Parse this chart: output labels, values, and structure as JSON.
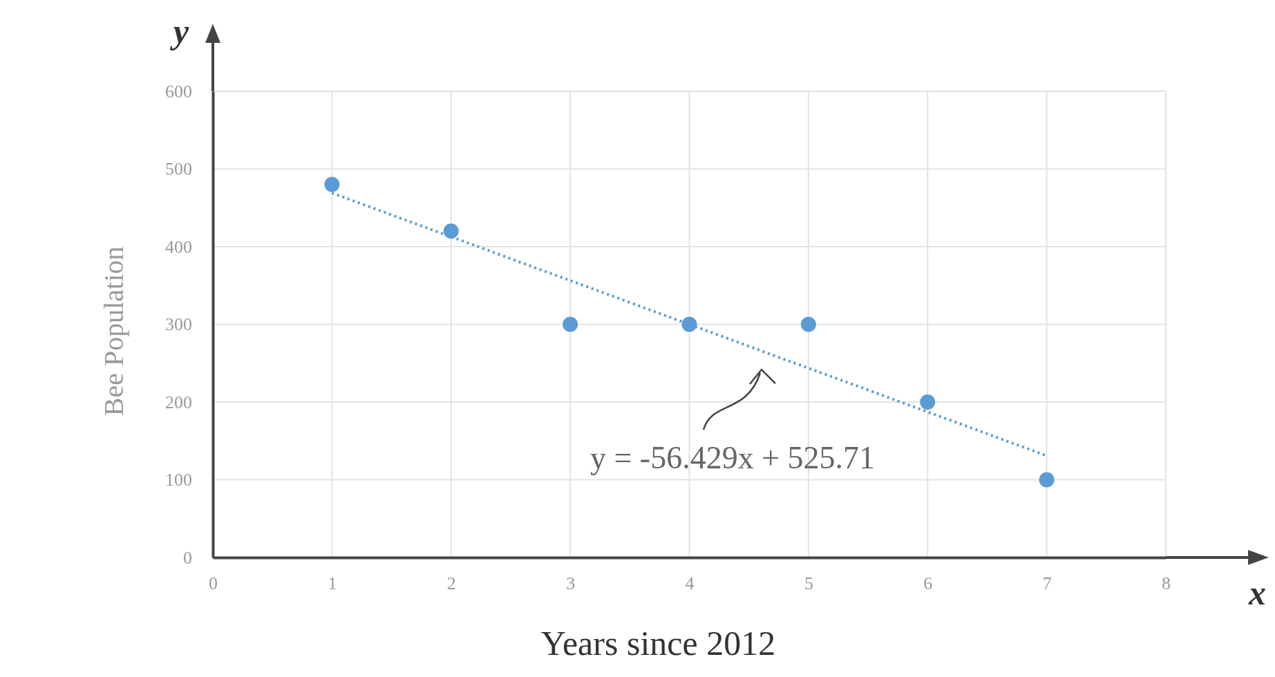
{
  "chart_data": {
    "type": "scatter",
    "xlabel": "Years since 2012",
    "ylabel": "Bee Population",
    "xlim": [
      0,
      8
    ],
    "xticks": [
      0,
      1,
      2,
      3,
      4,
      5,
      6,
      7,
      8
    ],
    "ylim": [
      0,
      600
    ],
    "yticks": [
      0,
      100,
      200,
      300,
      400,
      500,
      600
    ],
    "grid": true,
    "series": [
      {
        "marker": "circle",
        "color": "#5b9bd5",
        "x": [
          1,
          2,
          3,
          4,
          5,
          6,
          7
        ],
        "values": [
          480,
          420,
          300,
          300,
          300,
          200,
          100
        ]
      },
      {
        "type": "line",
        "color": "#5b9bd5",
        "line_style": "dotted",
        "x": [
          1,
          7
        ],
        "values": [
          469,
          131
        ]
      }
    ],
    "annotations": [
      "y = -56.429x + 525.71",
      "y",
      "x"
    ]
  }
}
